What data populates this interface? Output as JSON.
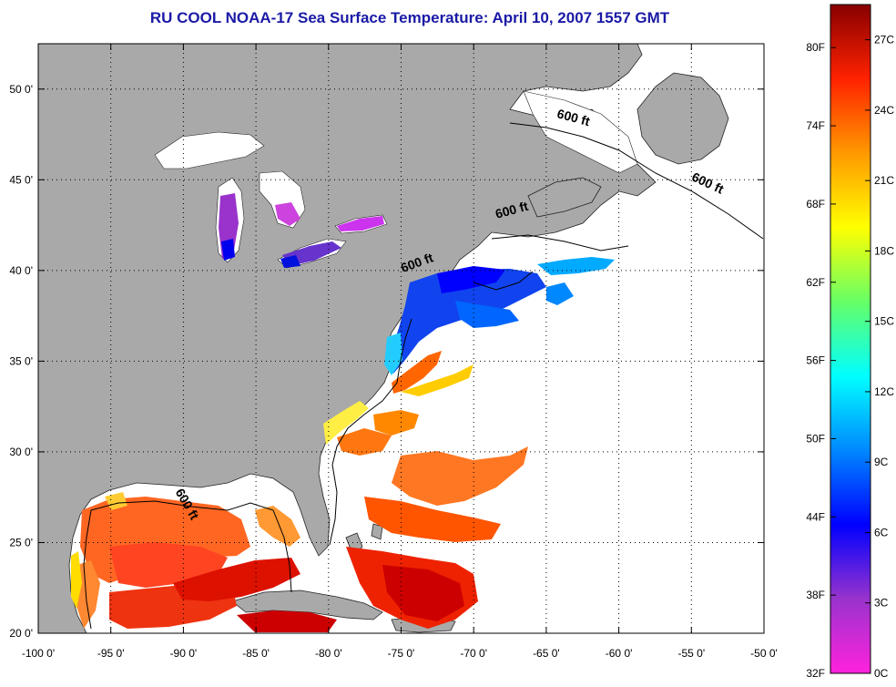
{
  "title": "RU COOL  NOAA-17  Sea Surface Temperature:  April 10, 2007 1557 GMT",
  "map": {
    "lon_range": [
      -100,
      -50
    ],
    "lat_range": [
      20,
      52.5
    ],
    "lon_ticks": [
      {
        "value": -100,
        "label": "-100 0'"
      },
      {
        "value": -95,
        "label": "-95 0'"
      },
      {
        "value": -90,
        "label": "-90 0'"
      },
      {
        "value": -85,
        "label": "-85 0'"
      },
      {
        "value": -80,
        "label": "-80 0'"
      },
      {
        "value": -75,
        "label": "-75 0'"
      },
      {
        "value": -70,
        "label": "-70 0'"
      },
      {
        "value": -65,
        "label": "-65 0'"
      },
      {
        "value": -60,
        "label": "-60 0'"
      },
      {
        "value": -55,
        "label": "-55 0'"
      },
      {
        "value": -50,
        "label": "-50 0'"
      }
    ],
    "lat_ticks": [
      {
        "value": 20,
        "label": "20 0'"
      },
      {
        "value": 25,
        "label": "25 0'"
      },
      {
        "value": 30,
        "label": "30 0'"
      },
      {
        "value": 35,
        "label": "35 0'"
      },
      {
        "value": 40,
        "label": "40 0'"
      },
      {
        "value": 45,
        "label": "45 0'"
      },
      {
        "value": 50,
        "label": "50 0'"
      }
    ],
    "contour_labels": [
      {
        "text": "600 ft",
        "lon": -63.2,
        "lat": 48.2,
        "angle": 15
      },
      {
        "text": "600 ft",
        "lon": -54.0,
        "lat": 44.6,
        "angle": 25
      },
      {
        "text": "600 ft",
        "lon": -67.3,
        "lat": 43.1,
        "angle": -15
      },
      {
        "text": "600 ft",
        "lon": -73.8,
        "lat": 40.2,
        "angle": -20
      },
      {
        "text": "600 ft",
        "lon": -90.0,
        "lat": 27.0,
        "angle": 60
      }
    ],
    "land_color": "#a9a9a9",
    "ocean_color": "#ffffff"
  },
  "colorbar": {
    "fahrenheit_labels": [
      "80F",
      "74F",
      "68F",
      "62F",
      "56F",
      "50F",
      "44F",
      "38F",
      "32F"
    ],
    "celsius_labels": [
      "27C",
      "24C",
      "21C",
      "18C",
      "15C",
      "12C",
      "9C",
      "6C",
      "3C",
      "0C"
    ],
    "range_c": [
      0,
      28.5
    ],
    "colors": [
      "#ff22dd",
      "#9933cc",
      "#0000ff",
      "#0088ff",
      "#00ffff",
      "#66ff66",
      "#ffff00",
      "#ff9900",
      "#ff2200",
      "#880000"
    ]
  }
}
